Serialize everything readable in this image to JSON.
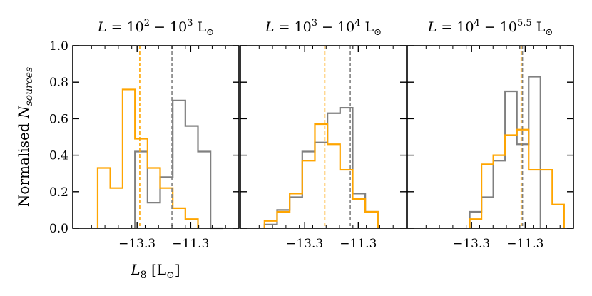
{
  "figure": {
    "ylabel": "Normalised N_sources",
    "xlabel": "L_8 [L_⊙]",
    "colors": {
      "grey": "#808080",
      "orange": "#FFA500",
      "frame": "#000000"
    }
  },
  "chart_data": [
    {
      "type": "histogram",
      "title": "L = 10^2 − 10^3 L_⊙",
      "xlim": [
        -15.7,
        -9.5
      ],
      "ylim": [
        0,
        1.0
      ],
      "yticks": [
        0.0,
        0.2,
        0.4,
        0.6,
        0.8,
        1.0
      ],
      "ytick_labels": [
        "0.0",
        "0.2",
        "0.4",
        "0.6",
        "0.8",
        "1.0"
      ],
      "xticks": [
        -13.3,
        -11.3
      ],
      "xtick_labels": [
        "−13.3",
        "−11.3"
      ],
      "series": [
        {
          "color": "grey",
          "edges": [
            -13.38,
            -12.91,
            -12.44,
            -11.97,
            -11.5,
            -11.03,
            -10.56,
            -10.09
          ],
          "values": [
            0.42,
            0.14,
            0.28,
            0.7,
            0.56,
            0.42,
            0.0
          ],
          "median": -12.0
        },
        {
          "color": "orange",
          "edges": [
            -14.77,
            -14.3,
            -13.84,
            -13.38,
            -12.91,
            -12.44,
            -11.97,
            -11.5,
            -11.03
          ],
          "values": [
            0.33,
            0.22,
            0.76,
            0.49,
            0.33,
            0.22,
            0.11,
            0.05
          ],
          "median": -13.2
        }
      ]
    },
    {
      "type": "histogram",
      "title": "L = 10^3 − 10^4 L_⊙",
      "xlim": [
        -15.7,
        -9.5
      ],
      "ylim": [
        0,
        1.0
      ],
      "yticks": [
        0.0,
        0.2,
        0.4,
        0.6,
        0.8,
        1.0
      ],
      "ytick_labels": [
        "",
        "",
        "",
        "",
        "",
        ""
      ],
      "xticks": [
        -13.3,
        -11.3
      ],
      "xtick_labels": [
        "−13.3",
        "−11.3"
      ],
      "series": [
        {
          "color": "grey",
          "edges": [
            -14.8,
            -14.33,
            -13.86,
            -13.39,
            -12.92,
            -12.45,
            -11.98,
            -11.51,
            -11.04,
            -10.57
          ],
          "values": [
            0.02,
            0.1,
            0.17,
            0.42,
            0.47,
            0.63,
            0.66,
            0.19,
            0.09
          ],
          "median": -11.6
        },
        {
          "color": "orange",
          "edges": [
            -14.8,
            -14.33,
            -13.86,
            -13.39,
            -12.92,
            -12.45,
            -11.98,
            -11.51,
            -11.04,
            -10.57
          ],
          "values": [
            0.04,
            0.09,
            0.19,
            0.37,
            0.57,
            0.46,
            0.32,
            0.16,
            0.09
          ],
          "median": -12.55
        }
      ]
    },
    {
      "type": "histogram",
      "title": "L = 10^4 − 10^5.5 L_⊙",
      "xlim": [
        -15.7,
        -9.5
      ],
      "ylim": [
        0,
        1.0
      ],
      "yticks": [
        0.0,
        0.2,
        0.4,
        0.6,
        0.8,
        1.0
      ],
      "ytick_labels": [
        "",
        "",
        "",
        "",
        "",
        ""
      ],
      "xticks": [
        -13.3,
        -11.3
      ],
      "xtick_labels": [
        "−13.3",
        "−11.3"
      ],
      "series": [
        {
          "color": "grey",
          "edges": [
            -13.37,
            -12.93,
            -12.49,
            -12.05,
            -11.61,
            -11.17,
            -10.73
          ],
          "values": [
            0.09,
            0.17,
            0.37,
            0.75,
            0.46,
            0.83
          ],
          "median": -11.4
        },
        {
          "color": "orange",
          "edges": [
            -13.37,
            -12.93,
            -12.49,
            -12.05,
            -11.61,
            -11.17,
            -10.73,
            -10.29,
            -9.85
          ],
          "values": [
            0.05,
            0.35,
            0.4,
            0.51,
            0.54,
            0.32,
            0.32,
            0.13
          ],
          "median": -11.45
        }
      ]
    }
  ]
}
